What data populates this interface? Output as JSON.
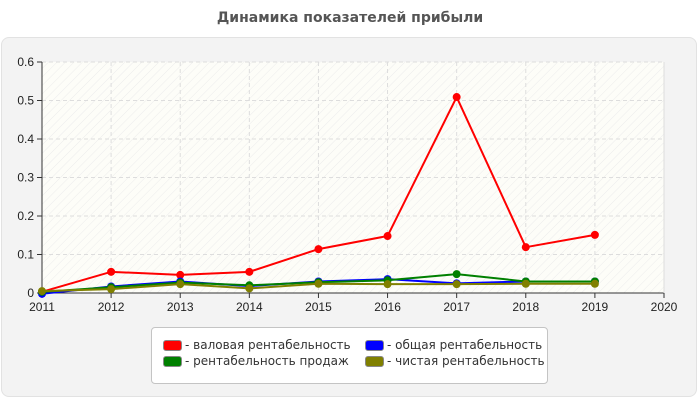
{
  "chart_data": {
    "type": "line",
    "title": "Динамика показателей прибыли",
    "xlabel": "",
    "ylabel": "",
    "x": [
      2011,
      2012,
      2013,
      2014,
      2015,
      2016,
      2017,
      2018,
      2019
    ],
    "x_ticks": [
      "2011",
      "2012",
      "2013",
      "2014",
      "2015",
      "2016",
      "2017",
      "2018",
      "2019",
      "2020"
    ],
    "y_ticks": [
      "0",
      "0.1",
      "0.2",
      "0.3",
      "0.4",
      "0.5",
      "0.6"
    ],
    "xlim": [
      2011,
      2020
    ],
    "ylim": [
      0,
      0.6
    ],
    "grid": true,
    "legend_position": "bottom",
    "series": [
      {
        "name": "валовая рентабельность",
        "color": "#ff0000",
        "values": [
          0.003,
          0.055,
          0.047,
          0.055,
          0.114,
          0.148,
          0.509,
          0.119,
          0.151
        ]
      },
      {
        "name": "общая рентабельность",
        "color": "#0000ff",
        "values": [
          -0.002,
          0.017,
          0.03,
          0.018,
          0.03,
          0.036,
          0.025,
          0.03,
          0.03
        ]
      },
      {
        "name": "рентабельность продаж",
        "color": "#008000",
        "values": [
          0.003,
          0.015,
          0.027,
          0.02,
          0.028,
          0.033,
          0.049,
          0.03,
          0.03
        ]
      },
      {
        "name": "чистая рентабельность",
        "color": "#808000",
        "values": [
          0.005,
          0.01,
          0.023,
          0.012,
          0.024,
          0.023,
          0.023,
          0.024,
          0.024
        ]
      }
    ]
  },
  "header": {
    "title": "Динамика показателей прибыли"
  },
  "legend": {
    "items": [
      {
        "label": "- валовая рентабельность",
        "color": "#ff0000"
      },
      {
        "label": "- общая рентабельность",
        "color": "#0000ff"
      },
      {
        "label": "- рентабельность продаж",
        "color": "#008000"
      },
      {
        "label": "- чистая рентабельность",
        "color": "#808000"
      }
    ]
  }
}
